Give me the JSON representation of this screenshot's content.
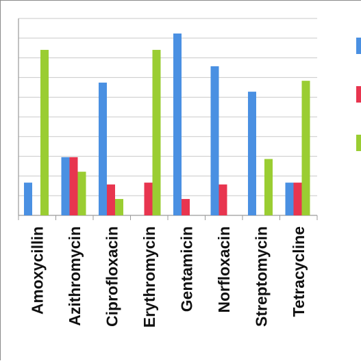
{
  "chart_data": {
    "type": "bar",
    "title": "",
    "xlabel": "",
    "ylabel": "",
    "ylim": [
      0,
      100
    ],
    "grid": true,
    "legend_position": "right",
    "categories": [
      "Amoxycillin",
      "Azithromycin",
      "Ciprofloxacin",
      "Erythromycin",
      "Gentamicin",
      "Norfloxacin",
      "Streptomycin",
      "Tetracycline"
    ],
    "series": [
      {
        "color": "#4a90e2",
        "values": [
          18,
          32,
          73,
          0,
          100,
          82,
          68,
          18
        ]
      },
      {
        "color": "#e8354f",
        "values": [
          0,
          32,
          17,
          18,
          9,
          17,
          0,
          18
        ]
      },
      {
        "color": "#9acd32",
        "values": [
          91,
          24,
          9,
          91,
          0,
          0,
          31,
          74
        ]
      }
    ]
  }
}
